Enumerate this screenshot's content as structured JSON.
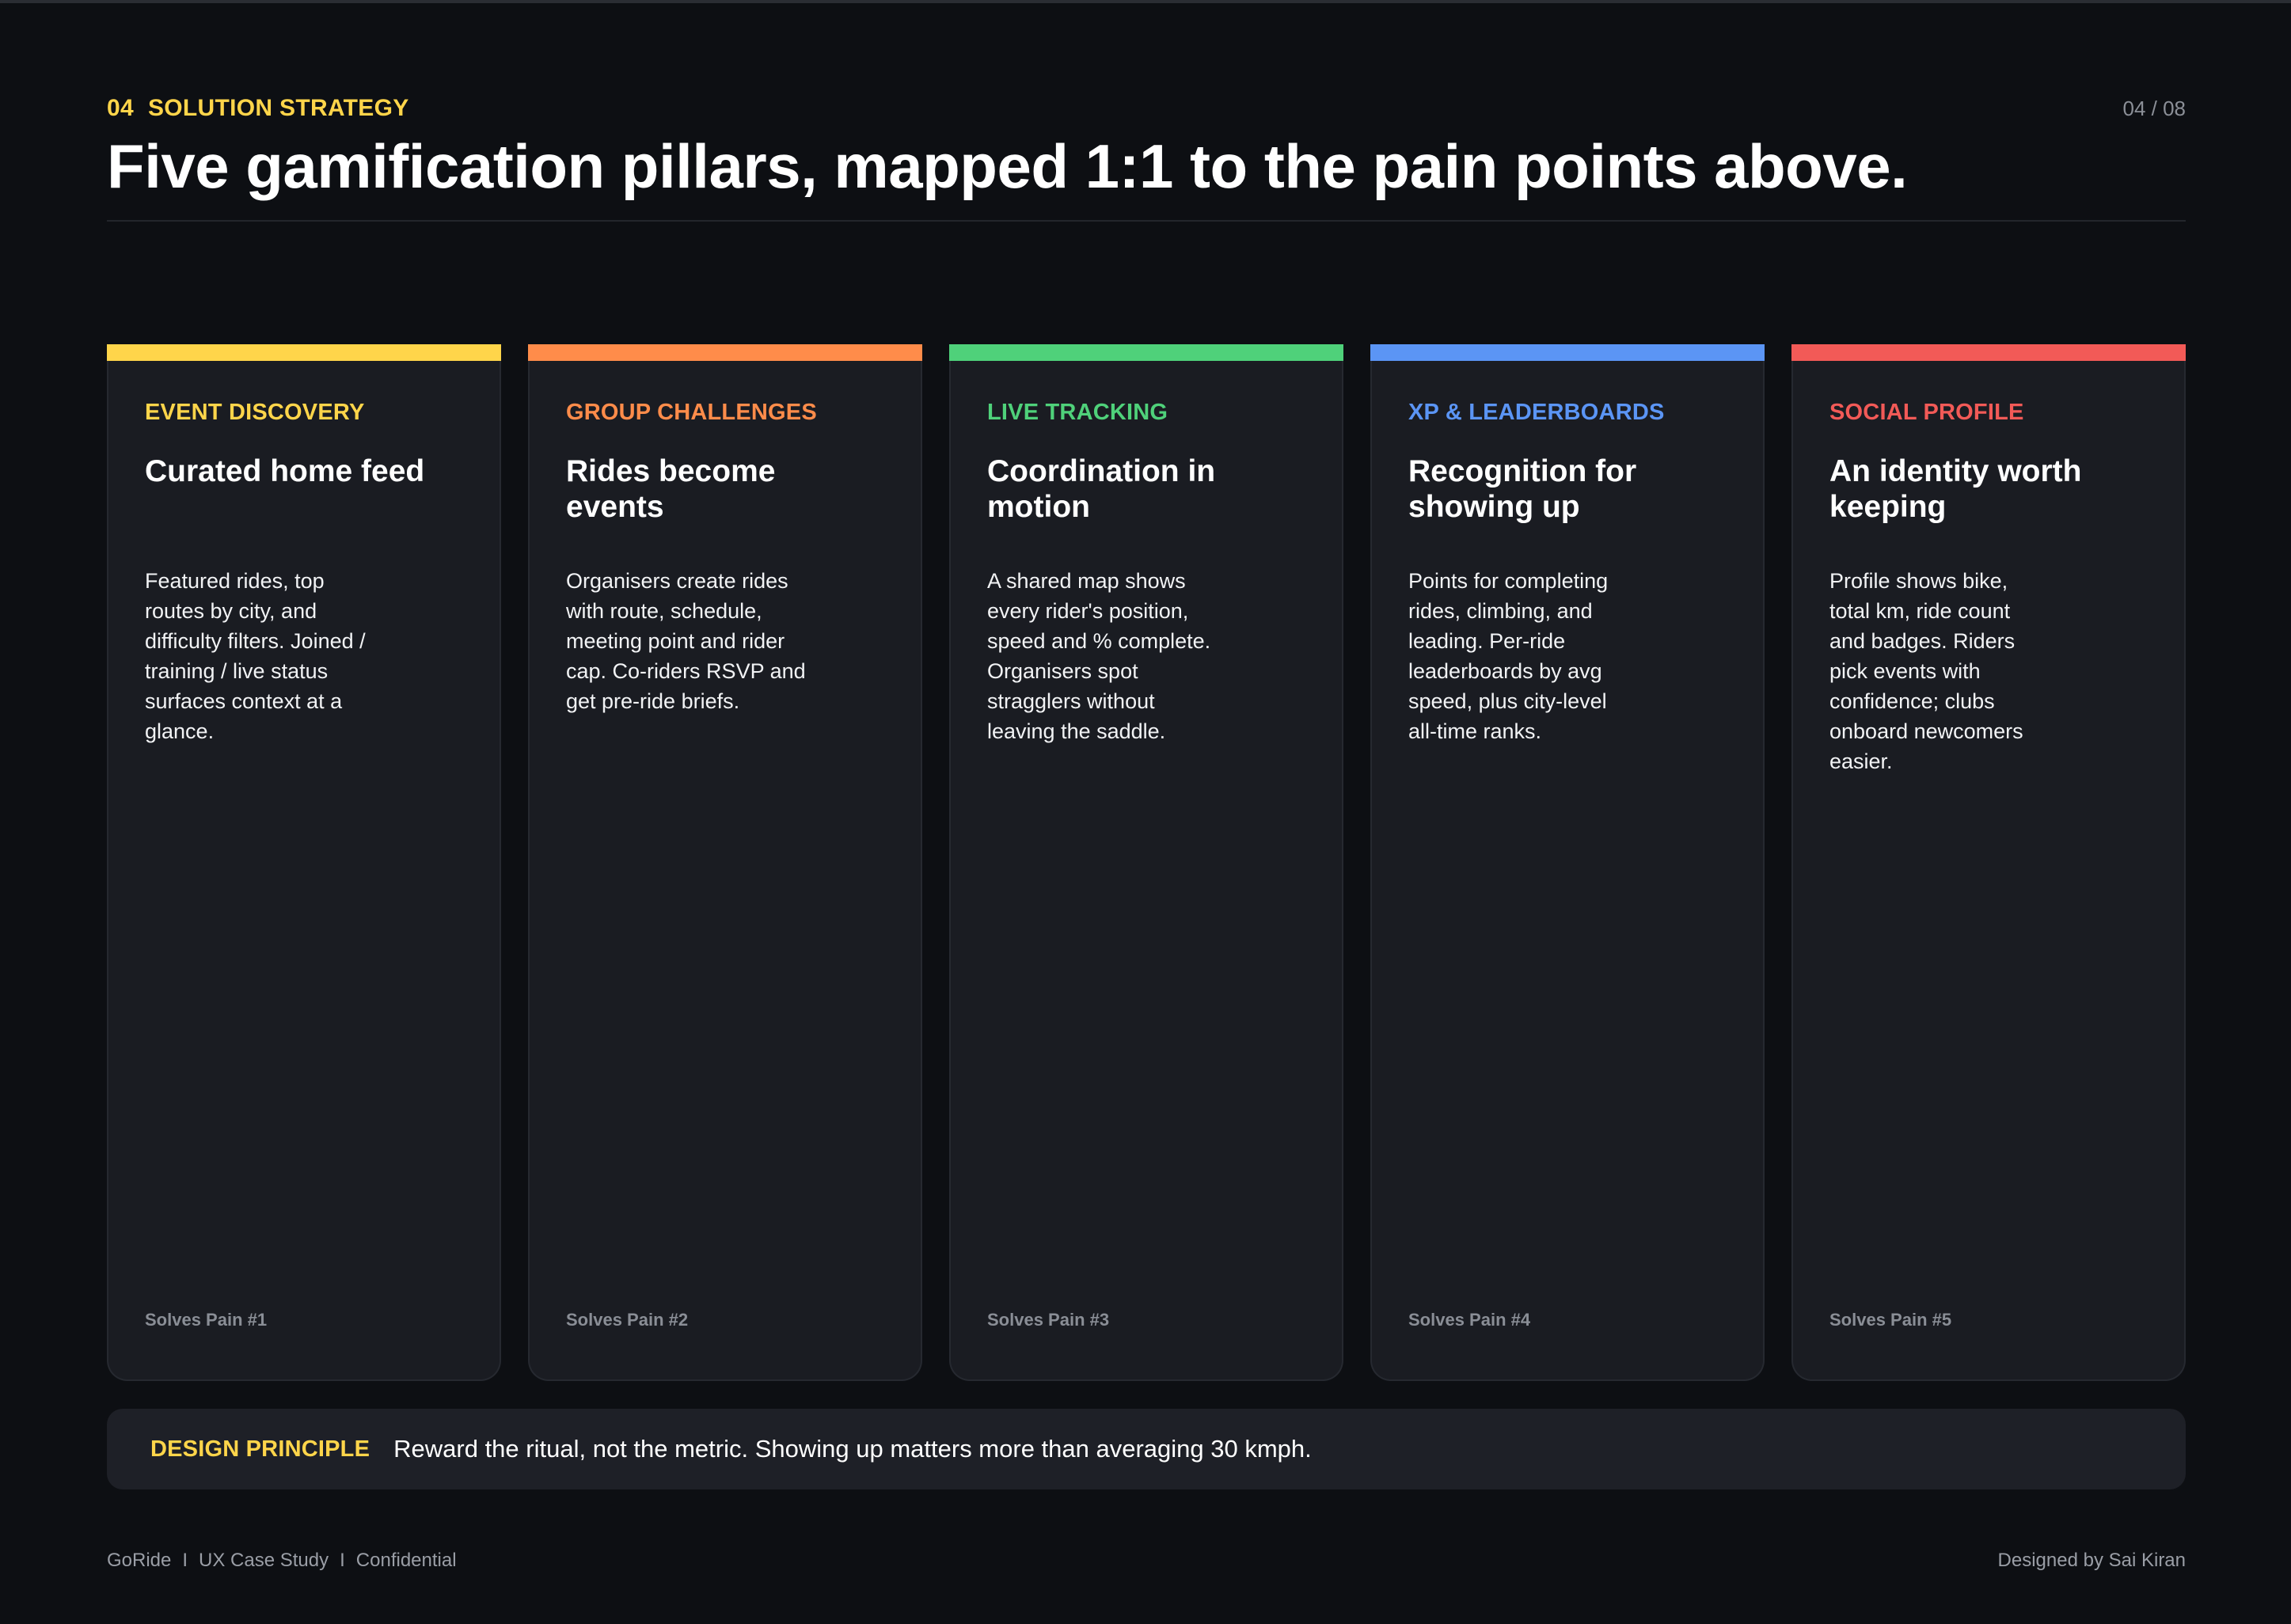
{
  "header": {
    "section_number": "04",
    "section_label": "SOLUTION STRATEGY",
    "page_indicator": "04 / 08",
    "title": "Five gamification pillars, mapped 1:1 to the pain points above."
  },
  "colors": {
    "background": "#0d0f13",
    "card_background": "#1a1c22",
    "accent_yellow": "#ffd54a",
    "pillar_1": "#ffd54a",
    "pillar_2": "#ff8c4a",
    "pillar_3": "#4fd17a",
    "pillar_4": "#5b95f5",
    "pillar_5": "#f25a57"
  },
  "pillars": [
    {
      "tag": "EVENT DISCOVERY",
      "heading": "Curated home feed",
      "body": "Featured rides, top routes by city, and difficulty filters. Joined / training / live status surfaces context at a glance.",
      "solves": "Solves Pain #1"
    },
    {
      "tag": "GROUP CHALLENGES",
      "heading": "Rides become events",
      "body": "Organisers create rides with route, schedule, meeting point and rider cap. Co-riders RSVP and get pre-ride briefs.",
      "solves": "Solves Pain #2"
    },
    {
      "tag": "LIVE TRACKING",
      "heading": "Coordination in motion",
      "body": "A shared map shows every rider's position, speed and % complete. Organisers spot stragglers without leaving the saddle.",
      "solves": "Solves Pain #3"
    },
    {
      "tag": "XP & LEADERBOARDS",
      "heading": "Recognition for showing up",
      "body": "Points for completing rides, climbing, and leading. Per-ride leaderboards by avg speed, plus city-level all-time ranks.",
      "solves": "Solves Pain #4"
    },
    {
      "tag": "SOCIAL PROFILE",
      "heading": "An identity worth keeping",
      "body": "Profile shows bike, total km, ride count and badges. Riders pick events with confidence; clubs onboard newcomers easier.",
      "solves": "Solves Pain #5"
    }
  ],
  "principle": {
    "label": "DESIGN PRINCIPLE",
    "text": "Reward the ritual, not the metric. Showing up matters more than averaging 30 kmph."
  },
  "footer": {
    "brand": "GoRide",
    "separator": "I",
    "doc_type": "UX Case Study",
    "confidentiality": "Confidential",
    "credit": "Designed by Sai Kiran"
  }
}
